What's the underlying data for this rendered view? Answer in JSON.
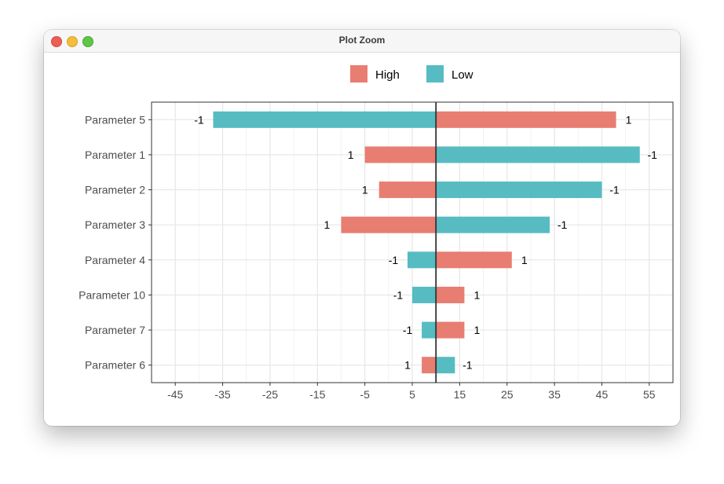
{
  "window": {
    "title": "Plot Zoom"
  },
  "colors": {
    "high": "#e87d72",
    "low": "#56bcc2"
  },
  "chart_data": {
    "type": "bar",
    "orientation": "horizontal",
    "title": "",
    "xlabel": "",
    "ylabel": "",
    "legend": {
      "position": "top",
      "entries": [
        "High",
        "Low"
      ]
    },
    "grid": true,
    "xlim": [
      -50,
      60
    ],
    "x_ticks": [
      "-45",
      "-35",
      "-25",
      "-15",
      "-5",
      "5",
      "15",
      "25",
      "35",
      "45",
      "55"
    ],
    "baseline": 10,
    "categories": [
      "Parameter 5",
      "Parameter 1",
      "Parameter 2",
      "Parameter 3",
      "Parameter 4",
      "Parameter 10",
      "Parameter 7",
      "Parameter 6"
    ],
    "series": [
      {
        "name": "High",
        "values": [
          48,
          -5,
          -2,
          -10,
          26,
          16,
          16,
          7
        ],
        "labels": [
          "1",
          "1",
          "1",
          "1",
          "1",
          "1",
          "1",
          "1"
        ]
      },
      {
        "name": "Low",
        "values": [
          -37,
          53,
          45,
          34,
          4,
          5,
          7,
          14
        ],
        "labels": [
          "-1",
          "-1",
          "-1",
          "-1",
          "-1",
          "-1",
          "-1",
          "-1"
        ]
      }
    ]
  }
}
